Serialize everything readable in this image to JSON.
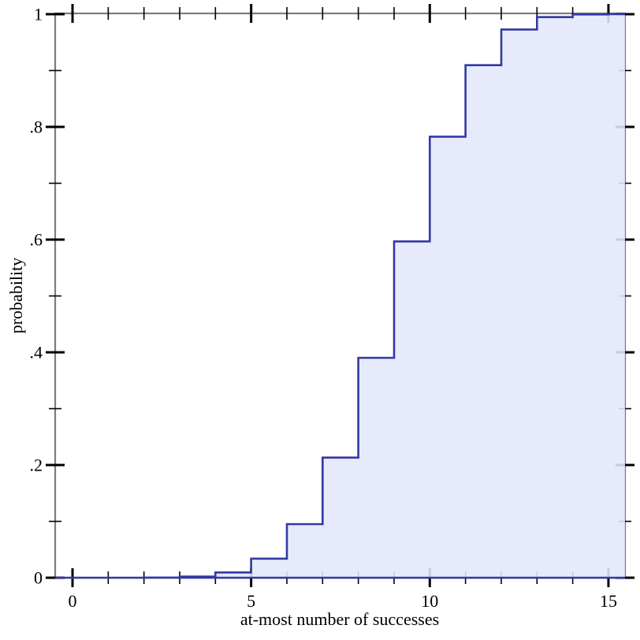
{
  "chart_data": {
    "type": "area",
    "subtype": "cdf-step",
    "title": "",
    "xlabel": "at-most number of successes",
    "ylabel": "probability",
    "step": "post",
    "x": [
      0,
      1,
      2,
      3,
      4,
      5,
      6,
      7,
      8,
      9,
      10,
      11,
      12,
      13,
      14,
      15
    ],
    "values": [
      0.0,
      3e-05,
      0.00028,
      0.00194,
      0.00935,
      0.03383,
      0.09505,
      0.2131,
      0.39019,
      0.59678,
      0.78272,
      0.9095,
      0.97289,
      0.99483,
      0.99953,
      1.0
    ],
    "xlim": [
      -0.485,
      15.46
    ],
    "ylim": [
      0,
      1.0014
    ],
    "x_major_ticks": [
      0,
      5,
      10,
      15
    ],
    "x_major_labels": [
      "0",
      "5",
      "10",
      "15"
    ],
    "x_minor_ticks": [
      1,
      2,
      3,
      4,
      6,
      7,
      8,
      9,
      11,
      12,
      13,
      14
    ],
    "y_major_ticks": [
      0,
      0.2,
      0.4,
      0.6,
      0.8,
      1
    ],
    "y_major_labels": [
      "0",
      ".2",
      ".4",
      ".6",
      ".8",
      "1"
    ],
    "y_minor_ticks": [
      0.1,
      0.3,
      0.5,
      0.7,
      0.9
    ],
    "grid": false,
    "legend": "none",
    "colors": {
      "line": "#3239a4",
      "fill": "#e4e7fa",
      "frame": "#7d7d7d",
      "tick": "#000000",
      "text": "#000000",
      "background": "#ffffff"
    }
  }
}
